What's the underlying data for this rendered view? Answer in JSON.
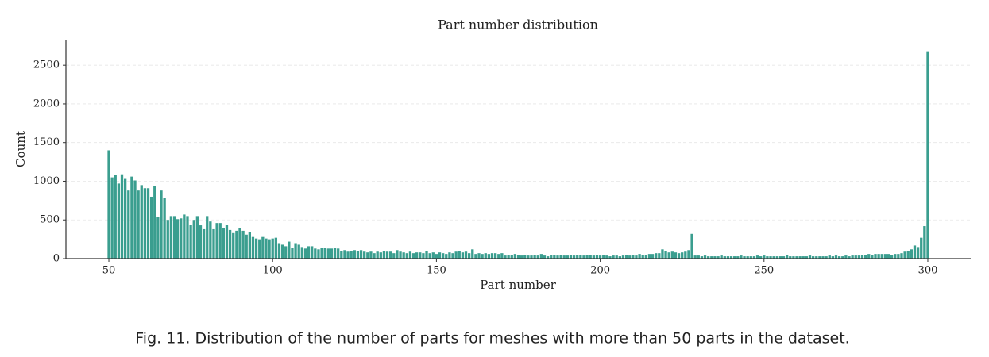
{
  "chart_data": {
    "type": "bar",
    "title": "Part number distribution",
    "xlabel": "Part number",
    "ylabel": "Count",
    "caption": "Fig. 11.  Distribution of the number of parts for meshes with more than 50 parts in the dataset.",
    "color": "#3a9e8f",
    "grid": true,
    "xlim": [
      36.9,
      313.1
    ],
    "ylim": [
      0,
      2830
    ],
    "xticks": [
      50,
      100,
      150,
      200,
      250,
      300
    ],
    "yticks": [
      0,
      500,
      1000,
      1500,
      2000,
      2500
    ],
    "x": [
      50,
      51,
      52,
      53,
      54,
      55,
      56,
      57,
      58,
      59,
      60,
      61,
      62,
      63,
      64,
      65,
      66,
      67,
      68,
      69,
      70,
      71,
      72,
      73,
      74,
      75,
      76,
      77,
      78,
      79,
      80,
      81,
      82,
      83,
      84,
      85,
      86,
      87,
      88,
      89,
      90,
      91,
      92,
      93,
      94,
      95,
      96,
      97,
      98,
      99,
      100,
      101,
      102,
      103,
      104,
      105,
      106,
      107,
      108,
      109,
      110,
      111,
      112,
      113,
      114,
      115,
      116,
      117,
      118,
      119,
      120,
      121,
      122,
      123,
      124,
      125,
      126,
      127,
      128,
      129,
      130,
      131,
      132,
      133,
      134,
      135,
      136,
      137,
      138,
      139,
      140,
      141,
      142,
      143,
      144,
      145,
      146,
      147,
      148,
      149,
      150,
      151,
      152,
      153,
      154,
      155,
      156,
      157,
      158,
      159,
      160,
      161,
      162,
      163,
      164,
      165,
      166,
      167,
      168,
      169,
      170,
      171,
      172,
      173,
      174,
      175,
      176,
      177,
      178,
      179,
      180,
      181,
      182,
      183,
      184,
      185,
      186,
      187,
      188,
      189,
      190,
      191,
      192,
      193,
      194,
      195,
      196,
      197,
      198,
      199,
      200,
      201,
      202,
      203,
      204,
      205,
      206,
      207,
      208,
      209,
      210,
      211,
      212,
      213,
      214,
      215,
      216,
      217,
      218,
      219,
      220,
      221,
      222,
      223,
      224,
      225,
      226,
      227,
      228,
      229,
      230,
      231,
      232,
      233,
      234,
      235,
      236,
      237,
      238,
      239,
      240,
      241,
      242,
      243,
      244,
      245,
      246,
      247,
      248,
      249,
      250,
      251,
      252,
      253,
      254,
      255,
      256,
      257,
      258,
      259,
      260,
      261,
      262,
      263,
      264,
      265,
      266,
      267,
      268,
      269,
      270,
      271,
      272,
      273,
      274,
      275,
      276,
      277,
      278,
      279,
      280,
      281,
      282,
      283,
      284,
      285,
      286,
      287,
      288,
      289,
      290,
      291,
      292,
      293,
      294,
      295,
      296,
      297,
      298,
      299,
      300
    ],
    "values": [
      1400,
      1050,
      1080,
      970,
      1090,
      1030,
      880,
      1060,
      1010,
      880,
      950,
      910,
      910,
      800,
      940,
      540,
      880,
      780,
      500,
      550,
      550,
      510,
      520,
      570,
      550,
      440,
      500,
      550,
      430,
      380,
      550,
      480,
      380,
      460,
      460,
      400,
      440,
      370,
      330,
      360,
      390,
      360,
      310,
      340,
      280,
      260,
      250,
      280,
      260,
      250,
      260,
      270,
      200,
      180,
      160,
      220,
      140,
      200,
      180,
      150,
      130,
      160,
      160,
      130,
      120,
      140,
      140,
      130,
      130,
      140,
      130,
      100,
      110,
      90,
      100,
      110,
      100,
      110,
      90,
      80,
      90,
      70,
      90,
      80,
      100,
      90,
      90,
      70,
      110,
      90,
      80,
      70,
      90,
      70,
      80,
      80,
      70,
      100,
      70,
      80,
      60,
      80,
      70,
      60,
      80,
      70,
      90,
      100,
      80,
      90,
      70,
      120,
      60,
      70,
      60,
      70,
      60,
      70,
      70,
      60,
      70,
      40,
      50,
      50,
      60,
      50,
      40,
      50,
      40,
      40,
      50,
      40,
      60,
      40,
      30,
      50,
      50,
      40,
      50,
      40,
      40,
      50,
      40,
      50,
      50,
      40,
      50,
      50,
      40,
      50,
      40,
      50,
      40,
      30,
      40,
      40,
      30,
      40,
      50,
      40,
      50,
      40,
      60,
      50,
      50,
      60,
      60,
      70,
      70,
      120,
      100,
      80,
      90,
      80,
      70,
      80,
      90,
      110,
      320,
      40,
      40,
      30,
      40,
      30,
      30,
      30,
      30,
      40,
      30,
      30,
      30,
      30,
      30,
      40,
      30,
      30,
      30,
      30,
      40,
      30,
      40,
      30,
      30,
      30,
      30,
      30,
      30,
      50,
      30,
      30,
      30,
      30,
      30,
      30,
      40,
      30,
      30,
      30,
      30,
      30,
      40,
      30,
      40,
      30,
      30,
      40,
      30,
      40,
      40,
      40,
      50,
      50,
      60,
      50,
      60,
      60,
      60,
      60,
      60,
      50,
      60,
      60,
      70,
      90,
      100,
      120,
      170,
      150,
      270,
      420,
      2680
    ]
  }
}
